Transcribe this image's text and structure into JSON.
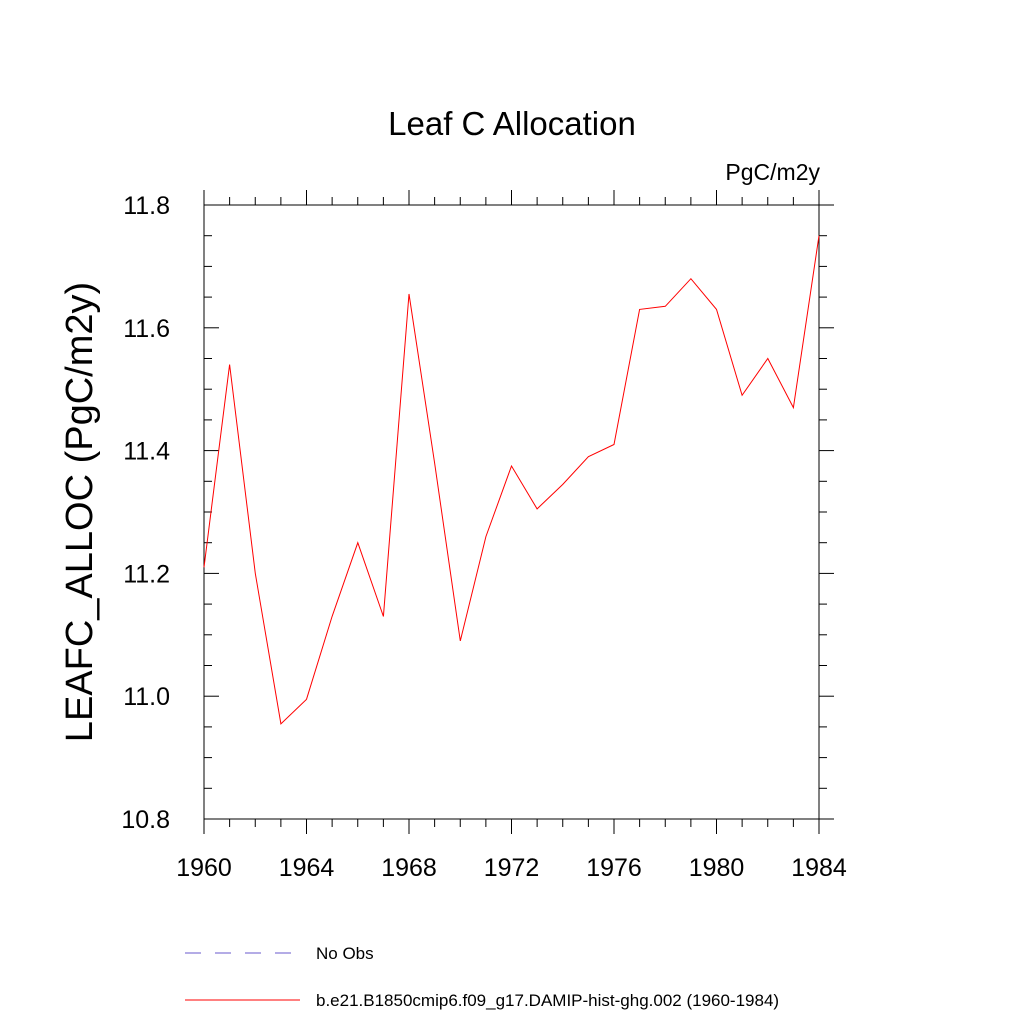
{
  "chart_data": {
    "type": "line",
    "title": "Leaf C Allocation",
    "units": "PgC/m2y",
    "ylabel": "LEAFC_ALLOC  (PgC/m2y)",
    "xlabel": "",
    "xlim": [
      1960,
      1984
    ],
    "ylim": [
      10.8,
      11.8
    ],
    "x_ticks": [
      1960,
      1964,
      1968,
      1972,
      1976,
      1980,
      1984
    ],
    "x_tick_labels": [
      "1960",
      "1964",
      "1968",
      "1972",
      "1976",
      "1980",
      "1984"
    ],
    "y_ticks": [
      10.8,
      11.0,
      11.2,
      11.4,
      11.6,
      11.8
    ],
    "y_tick_labels": [
      "10.8",
      "11.0",
      "11.2",
      "11.4",
      "11.6",
      "11.8"
    ],
    "grid": false,
    "legend_position": "bottom",
    "series": [
      {
        "name": "b.e21.B1850cmip6.f09_g17.DAMIP-hist-ghg.002 (1960-1984)",
        "color": "#ff0000",
        "style": "solid",
        "x": [
          1960,
          1961,
          1962,
          1963,
          1964,
          1965,
          1966,
          1967,
          1968,
          1969,
          1970,
          1971,
          1972,
          1973,
          1974,
          1975,
          1976,
          1977,
          1978,
          1979,
          1980,
          1981,
          1982,
          1983,
          1984
        ],
        "values": [
          11.21,
          11.54,
          11.2,
          10.955,
          10.995,
          11.13,
          11.25,
          11.13,
          11.655,
          11.38,
          11.09,
          11.26,
          11.375,
          11.305,
          11.345,
          11.39,
          11.41,
          11.63,
          11.635,
          11.68,
          11.63,
          11.49,
          11.55,
          11.47,
          11.75
        ]
      },
      {
        "name": "No Obs",
        "color": "#6a5acd",
        "style": "dashed",
        "x": [],
        "values": []
      }
    ]
  }
}
